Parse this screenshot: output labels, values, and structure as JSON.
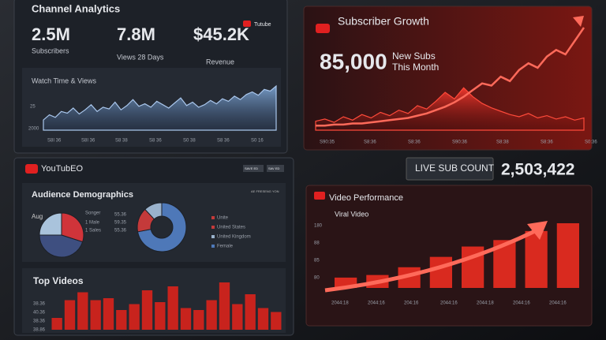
{
  "channel_analytics": {
    "title": "Channel Analytics",
    "badge": "Tutube",
    "stats": [
      {
        "value": "2.5M",
        "label": "Subscribers"
      },
      {
        "value": "7.8M",
        "label": "Views 28 Days"
      },
      {
        "value": "$45.2K",
        "label": "Revenue"
      }
    ],
    "watch_time": {
      "title": "Watch Time & Views",
      "y_labels": [
        "25",
        "2000"
      ],
      "x_labels": [
        "S8I 36",
        "S8I 36",
        "S8 38",
        "S8 36",
        "S0 38",
        "S8 36",
        "S0 16"
      ],
      "values": [
        12,
        18,
        15,
        22,
        20,
        26,
        19,
        24,
        30,
        22,
        27,
        25,
        33,
        24,
        29,
        36,
        28,
        31,
        27,
        34,
        30,
        26,
        32,
        38,
        29,
        33,
        27,
        30,
        35,
        31,
        37,
        34,
        40,
        36,
        42,
        45,
        41,
        48,
        46,
        52
      ]
    }
  },
  "subscriber_growth": {
    "title": "Subscriber Growth",
    "big_number": "85,000",
    "caption": [
      "New Subs",
      "This Month"
    ],
    "x_labels": [
      "S90:35",
      "S8:36",
      "S8:36",
      "S90:36",
      "S8:38",
      "S8:36",
      "S0:36"
    ],
    "activity": [
      8,
      10,
      7,
      12,
      9,
      14,
      11,
      16,
      13,
      18,
      15,
      22,
      19,
      26,
      34,
      28,
      38,
      30,
      24,
      20,
      17,
      14,
      12,
      15,
      11,
      13,
      10,
      12,
      9,
      11
    ],
    "trend": [
      4,
      4,
      5,
      5,
      6,
      6,
      7,
      8,
      9,
      10,
      11,
      13,
      15,
      18,
      21,
      25,
      30,
      36,
      42,
      40,
      48,
      44,
      54,
      60,
      56,
      66,
      72,
      68,
      80,
      92
    ]
  },
  "live_count": {
    "label": "LIVE SUB COUNT",
    "value": "2,503,422"
  },
  "youtube_panel": {
    "brand": "YouTubEO",
    "buttons": [
      "SAVE ED",
      "SAV ED"
    ],
    "demographics": {
      "title": "Audience Demographics",
      "filter": "AE FRESENG YON",
      "pie_labels": [
        "Aug",
        "Songer",
        "1 Male",
        "1 Sales"
      ],
      "pie_values": [
        30,
        45,
        25
      ],
      "pie_numbers": [
        "55.36",
        "59.35",
        "55.36"
      ],
      "donut_values": [
        72,
        16,
        12
      ],
      "legend": [
        "Unite",
        "United States",
        "United Kingdom",
        "Female"
      ]
    },
    "top_videos": {
      "title": "Top Videos",
      "y_labels": [
        "38.36",
        "40.36",
        "38.36",
        "38.86"
      ],
      "values": [
        12,
        30,
        38,
        30,
        32,
        20,
        26,
        40,
        28,
        44,
        22,
        20,
        30,
        48,
        26,
        36,
        22,
        18
      ]
    }
  },
  "video_performance": {
    "title": "Video Performance",
    "subtitle": "Viral Video",
    "y_labels": [
      "180",
      "88",
      "85",
      "80"
    ],
    "x_labels": [
      "2044:18",
      "2044:16",
      "204:16",
      "2044:16",
      "2044:18",
      "2044:16",
      "2044:16"
    ],
    "values": [
      16,
      20,
      32,
      48,
      64,
      74,
      88,
      100
    ]
  }
}
